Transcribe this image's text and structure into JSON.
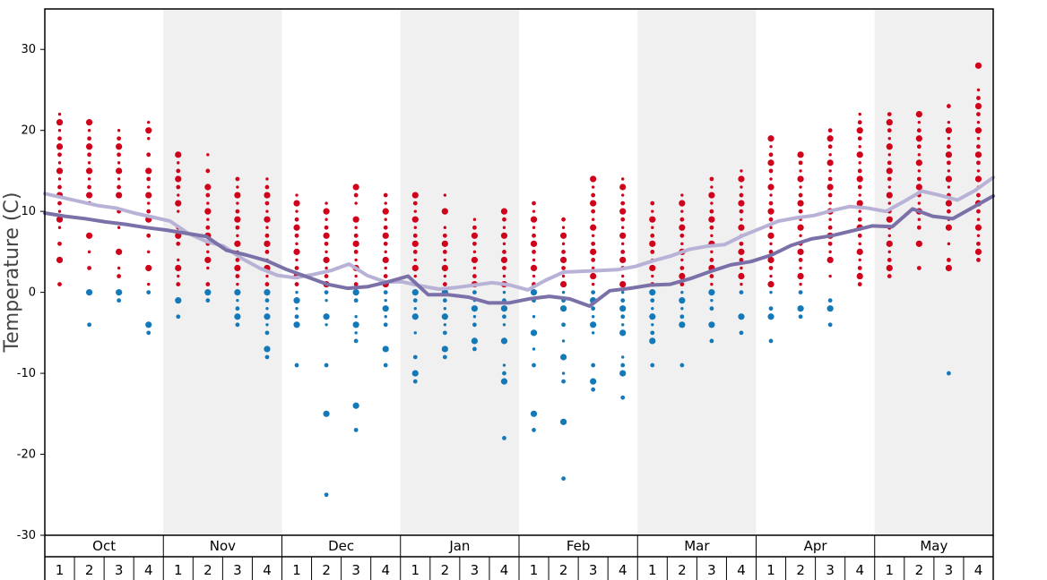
{
  "chart_data": {
    "type": "scatter",
    "title": "",
    "xlabel": "",
    "ylabel": "Temperature (C)",
    "ylim": [
      -30,
      35
    ],
    "yticks": [
      -30,
      -20,
      -10,
      0,
      10,
      20,
      30
    ],
    "months": [
      "Oct",
      "Nov",
      "Dec",
      "Jan",
      "Feb",
      "Mar",
      "Apr",
      "May"
    ],
    "weeks": [
      "1",
      "2",
      "3",
      "4"
    ],
    "colors": {
      "warm_dots": "#d0021b",
      "cold_dots": "#1479b8",
      "upper_line": "#b8b2d6",
      "lower_line": "#7b70a8",
      "shaded_band": "#f0f0f0"
    },
    "series": [
      {
        "values": [
          12.2,
          11.7,
          11.2,
          10.7,
          10.4,
          9.8,
          9.3,
          8.8,
          7.3,
          6.3,
          5.7,
          4.2,
          3.0,
          2.1,
          1.8,
          2.2,
          2.7,
          3.5,
          2.1,
          1.3,
          1.3,
          0.8,
          0.4,
          0.6,
          0.9,
          1.2,
          0.9,
          0.3,
          1.5,
          2.5,
          2.6,
          2.7,
          2.8,
          3.2,
          3.9,
          4.5,
          5.3,
          5.7,
          5.9,
          7.0,
          7.9,
          8.8,
          9.2,
          9.5,
          10.1,
          10.6,
          10.4,
          10.0,
          11.2,
          12.5,
          12.0,
          11.4,
          12.6,
          14.2
        ]
      },
      {
        "values": [
          9.8,
          9.4,
          9.1,
          8.7,
          8.4,
          8.0,
          7.7,
          7.3,
          6.9,
          5.2,
          4.6,
          3.9,
          2.8,
          1.9,
          1.0,
          0.5,
          0.7,
          1.3,
          2.0,
          -0.3,
          -0.3,
          -0.6,
          -1.3,
          -1.3,
          -0.8,
          -0.5,
          -0.8,
          -1.7,
          0.2,
          0.5,
          0.9,
          1.0,
          1.7,
          2.6,
          3.4,
          3.8,
          4.6,
          5.8,
          6.6,
          7.0,
          7.6,
          8.2,
          8.1,
          10.3,
          9.4,
          9.1,
          10.5,
          11.9
        ]
      }
    ],
    "points": [
      {
        "w": 0,
        "v": [
          1,
          4,
          6,
          8,
          9,
          10,
          11,
          12,
          13,
          14,
          15,
          16,
          17,
          18,
          19,
          20,
          21,
          22
        ]
      },
      {
        "w": 1,
        "v": [
          -4,
          0,
          3,
          5,
          7,
          9,
          11,
          12,
          13,
          14,
          15,
          16,
          17,
          18,
          19,
          20,
          21
        ]
      },
      {
        "w": 2,
        "v": [
          -1,
          0,
          2,
          3,
          5,
          8,
          10,
          12,
          13,
          14,
          15,
          16,
          17,
          18,
          19,
          20
        ]
      },
      {
        "w": 3,
        "v": [
          -5,
          -4,
          0,
          1,
          3,
          5,
          7,
          9,
          10,
          11,
          12,
          13,
          14,
          15,
          17,
          19,
          20,
          21
        ]
      },
      {
        "w": 4,
        "v": [
          -3,
          -1,
          1,
          2,
          3,
          4,
          6,
          7,
          8,
          10,
          11,
          12,
          13,
          14,
          15,
          16,
          17
        ]
      },
      {
        "w": 5,
        "v": [
          -1,
          0,
          1,
          3,
          4,
          5,
          6,
          7,
          8,
          9,
          10,
          11,
          12,
          13,
          15,
          17
        ]
      },
      {
        "w": 6,
        "v": [
          -4,
          -3,
          -2,
          -1,
          0,
          1,
          2,
          3,
          4,
          5,
          6,
          7,
          8,
          9,
          10,
          11,
          12,
          13,
          14
        ]
      },
      {
        "w": 7,
        "v": [
          -8,
          -7,
          -5,
          -4,
          -3,
          -2,
          -1,
          0,
          1,
          2,
          3,
          4,
          5,
          6,
          7,
          8,
          9,
          10,
          11,
          12,
          13,
          14
        ]
      },
      {
        "w": 8,
        "v": [
          -9,
          -4,
          -3,
          -2,
          -1,
          0,
          1,
          2,
          3,
          4,
          5,
          6,
          7,
          8,
          9,
          10,
          11,
          12
        ]
      },
      {
        "w": 9,
        "v": [
          -25,
          -15,
          -9,
          -4,
          -3,
          -1,
          0,
          1,
          2,
          3,
          4,
          5,
          6,
          7,
          8,
          9,
          10,
          11
        ]
      },
      {
        "w": 10,
        "v": [
          -17,
          -14,
          -6,
          -5,
          -4,
          -3,
          -1,
          0,
          1,
          2,
          3,
          4,
          5,
          6,
          7,
          8,
          9,
          11,
          12,
          13
        ]
      },
      {
        "w": 11,
        "v": [
          -9,
          -7,
          -4,
          -3,
          -2,
          -1,
          0,
          1,
          2,
          3,
          4,
          5,
          6,
          7,
          8,
          9,
          10,
          11,
          12
        ]
      },
      {
        "w": 12,
        "v": [
          -11,
          -10,
          -8,
          -5,
          -3,
          -2,
          -1,
          0,
          1,
          2,
          3,
          4,
          5,
          6,
          7,
          8,
          9,
          10,
          11,
          12
        ]
      },
      {
        "w": 13,
        "v": [
          -8,
          -7,
          -5,
          -4,
          -3,
          -2,
          -1,
          0,
          1,
          2,
          3,
          4,
          5,
          6,
          7,
          8,
          10,
          12
        ]
      },
      {
        "w": 14,
        "v": [
          -7,
          -6,
          -4,
          -3,
          -2,
          -1,
          0,
          1,
          2,
          3,
          4,
          5,
          6,
          7,
          8,
          9
        ]
      },
      {
        "w": 15,
        "v": [
          -18,
          -11,
          -10,
          -9,
          -6,
          -4,
          -3,
          -2,
          -1,
          0,
          1,
          2,
          3,
          4,
          5,
          6,
          7,
          8,
          9,
          10
        ]
      },
      {
        "w": 16,
        "v": [
          -17,
          -15,
          -9,
          -7,
          -5,
          -3,
          -1,
          0,
          1,
          2,
          3,
          4,
          5,
          6,
          7,
          8,
          9,
          10,
          11
        ]
      },
      {
        "w": 17,
        "v": [
          -23,
          -16,
          -11,
          -10,
          -8,
          -6,
          -4,
          -2,
          -1,
          0,
          1,
          2,
          3,
          4,
          5,
          6,
          7,
          8,
          9
        ]
      },
      {
        "w": 18,
        "v": [
          -12,
          -11,
          -9,
          -5,
          -4,
          -3,
          -2,
          -1,
          0,
          1,
          2,
          3,
          4,
          5,
          6,
          7,
          8,
          9,
          10,
          11,
          12,
          13,
          14
        ]
      },
      {
        "w": 19,
        "v": [
          -13,
          -10,
          -9,
          -8,
          -5,
          -4,
          -3,
          -2,
          -1,
          0,
          1,
          2,
          3,
          4,
          5,
          6,
          7,
          8,
          9,
          10,
          11,
          12,
          13,
          14
        ]
      },
      {
        "w": 20,
        "v": [
          -9,
          -6,
          -5,
          -4,
          -3,
          -2,
          -1,
          0,
          1,
          2,
          3,
          4,
          5,
          6,
          7,
          8,
          9,
          10,
          11
        ]
      },
      {
        "w": 21,
        "v": [
          -9,
          -4,
          -3,
          -2,
          -1,
          0,
          1,
          2,
          3,
          4,
          5,
          6,
          7,
          8,
          9,
          10,
          11,
          12
        ]
      },
      {
        "w": 22,
        "v": [
          -6,
          -4,
          -2,
          -1,
          0,
          1,
          2,
          3,
          4,
          5,
          6,
          7,
          8,
          9,
          10,
          11,
          12,
          13,
          14
        ]
      },
      {
        "w": 23,
        "v": [
          -5,
          -3,
          0,
          1,
          2,
          3,
          4,
          5,
          6,
          7,
          8,
          9,
          10,
          11,
          12,
          13,
          14,
          15
        ]
      },
      {
        "w": 24,
        "v": [
          -6,
          -3,
          -2,
          0,
          1,
          2,
          3,
          4,
          5,
          6,
          7,
          8,
          9,
          10,
          11,
          12,
          13,
          14,
          15,
          16,
          17,
          18,
          19
        ]
      },
      {
        "w": 25,
        "v": [
          -3,
          -2,
          0,
          1,
          2,
          3,
          4,
          5,
          6,
          7,
          8,
          9,
          10,
          11,
          12,
          13,
          14,
          15,
          16,
          17
        ]
      },
      {
        "w": 26,
        "v": [
          -4,
          -2,
          -1,
          2,
          4,
          5,
          6,
          7,
          8,
          9,
          10,
          11,
          12,
          13,
          14,
          15,
          16,
          17,
          18,
          19,
          20
        ]
      },
      {
        "w": 27,
        "v": [
          1,
          2,
          3,
          4,
          5,
          6,
          7,
          8,
          9,
          10,
          11,
          12,
          13,
          14,
          15,
          16,
          17,
          18,
          19,
          20,
          21,
          22
        ]
      },
      {
        "w": 28,
        "v": [
          2,
          3,
          4,
          5,
          6,
          7,
          8,
          9,
          10,
          11,
          12,
          13,
          14,
          15,
          16,
          17,
          18,
          19,
          20,
          21,
          22
        ]
      },
      {
        "w": 29,
        "v": [
          3,
          6,
          8,
          9,
          10,
          11,
          12,
          13,
          14,
          15,
          16,
          17,
          18,
          19,
          20,
          21,
          22
        ]
      },
      {
        "w": 30,
        "v": [
          -10,
          3,
          4,
          6,
          8,
          9,
          10,
          11,
          12,
          13,
          14,
          15,
          16,
          17,
          18,
          19,
          20,
          21,
          23
        ]
      },
      {
        "w": 31,
        "v": [
          4,
          5,
          6,
          7,
          8,
          9,
          10,
          11,
          12,
          13,
          14,
          15,
          16,
          17,
          18,
          19,
          20,
          21,
          22,
          23,
          24,
          25,
          28
        ]
      }
    ]
  }
}
